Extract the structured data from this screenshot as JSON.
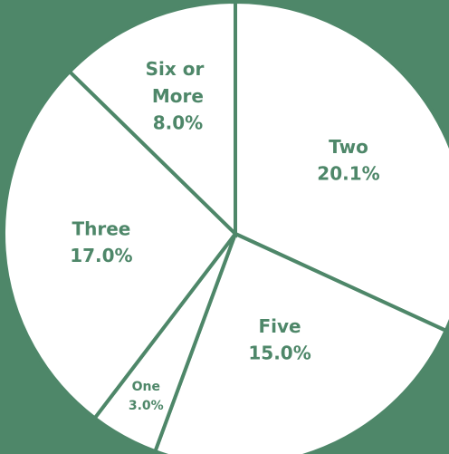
{
  "chart_data": {
    "type": "pie",
    "categories": [
      "Two",
      "Five",
      "One",
      "Three",
      "Six or More"
    ],
    "values": [
      20.1,
      15.0,
      3.0,
      17.0,
      8.0
    ],
    "value_labels": [
      "20.1%",
      "15.0%",
      "3.0%",
      "17.0%",
      "8.0%"
    ],
    "color": "#ffffff",
    "edge_color": "#4e8769",
    "background": "#4e8769"
  }
}
